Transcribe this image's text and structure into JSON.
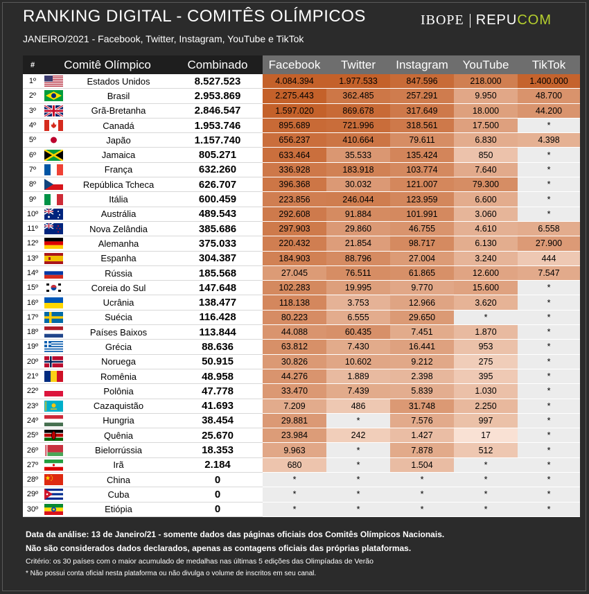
{
  "title": "RANKING DIGITAL - COMITÊS OLÍMPICOS",
  "subtitle": "JANEIRO/2021 - Facebook, Twitter, Instagram, YouTube e TikTok",
  "logos": {
    "ibope": "IBOPE",
    "repucom_a": "REPU",
    "repucom_b": "COM"
  },
  "headers": {
    "rank": "#",
    "committee": "Comitê Olímpico",
    "combined": "Combinado",
    "facebook": "Facebook",
    "twitter": "Twitter",
    "instagram": "Instagram",
    "youtube": "YouTube",
    "tiktok": "TikTok"
  },
  "colors": {
    "background": "#2b2b2b",
    "header_gray": "#6e6e6e",
    "na_cell": "#ececec",
    "top_value": "#c4612a",
    "repucom_accent": "#b5cf2e"
  },
  "rows": [
    {
      "rank": "1º",
      "flag": "us-flag",
      "name": "Estados Unidos",
      "combined": "8.527.523",
      "facebook": "4.084.394",
      "twitter": "1.977.533",
      "instagram": "847.596",
      "youtube": "218.000",
      "tiktok": "1.400.000"
    },
    {
      "rank": "2º",
      "flag": "br-flag",
      "name": "Brasil",
      "combined": "2.953.869",
      "facebook": "2.275.443",
      "twitter": "362.485",
      "instagram": "257.291",
      "youtube": "9.950",
      "tiktok": "48.700"
    },
    {
      "rank": "3º",
      "flag": "gb-flag",
      "name": "Grã-Bretanha",
      "combined": "2.846.547",
      "facebook": "1.597.020",
      "twitter": "869.678",
      "instagram": "317.649",
      "youtube": "18.000",
      "tiktok": "44.200"
    },
    {
      "rank": "4º",
      "flag": "ca-flag",
      "name": "Canadá",
      "combined": "1.953.746",
      "facebook": "895.689",
      "twitter": "721.996",
      "instagram": "318.561",
      "youtube": "17.500",
      "tiktok": "*"
    },
    {
      "rank": "5º",
      "flag": "jp-flag",
      "name": "Japão",
      "combined": "1.157.740",
      "facebook": "656.237",
      "twitter": "410.664",
      "instagram": "79.611",
      "youtube": "6.830",
      "tiktok": "4.398"
    },
    {
      "rank": "6º",
      "flag": "jm-flag",
      "name": "Jamaica",
      "combined": "805.271",
      "facebook": "633.464",
      "twitter": "35.533",
      "instagram": "135.424",
      "youtube": "850",
      "tiktok": "*"
    },
    {
      "rank": "7º",
      "flag": "fr-flag",
      "name": "França",
      "combined": "632.260",
      "facebook": "336.928",
      "twitter": "183.918",
      "instagram": "103.774",
      "youtube": "7.640",
      "tiktok": "*"
    },
    {
      "rank": "8º",
      "flag": "cz-flag",
      "name": "República Tcheca",
      "combined": "626.707",
      "facebook": "396.368",
      "twitter": "30.032",
      "instagram": "121.007",
      "youtube": "79.300",
      "tiktok": "*"
    },
    {
      "rank": "9º",
      "flag": "it-flag",
      "name": "Itália",
      "combined": "600.459",
      "facebook": "223.856",
      "twitter": "246.044",
      "instagram": "123.959",
      "youtube": "6.600",
      "tiktok": "*"
    },
    {
      "rank": "10º",
      "flag": "au-flag",
      "name": "Austrália",
      "combined": "489.543",
      "facebook": "292.608",
      "twitter": "91.884",
      "instagram": "101.991",
      "youtube": "3.060",
      "tiktok": "*"
    },
    {
      "rank": "11º",
      "flag": "nz-flag",
      "name": "Nova Zelândia",
      "combined": "385.686",
      "facebook": "297.903",
      "twitter": "29.860",
      "instagram": "46.755",
      "youtube": "4.610",
      "tiktok": "6.558"
    },
    {
      "rank": "12º",
      "flag": "de-flag",
      "name": "Alemanha",
      "combined": "375.033",
      "facebook": "220.432",
      "twitter": "21.854",
      "instagram": "98.717",
      "youtube": "6.130",
      "tiktok": "27.900"
    },
    {
      "rank": "13º",
      "flag": "es-flag",
      "name": "Espanha",
      "combined": "304.387",
      "facebook": "184.903",
      "twitter": "88.796",
      "instagram": "27.004",
      "youtube": "3.240",
      "tiktok": "444"
    },
    {
      "rank": "14º",
      "flag": "ru-flag",
      "name": "Rússia",
      "combined": "185.568",
      "facebook": "27.045",
      "twitter": "76.511",
      "instagram": "61.865",
      "youtube": "12.600",
      "tiktok": "7.547"
    },
    {
      "rank": "15º",
      "flag": "kr-flag",
      "name": "Coreia do Sul",
      "combined": "147.648",
      "facebook": "102.283",
      "twitter": "19.995",
      "instagram": "9.770",
      "youtube": "15.600",
      "tiktok": "*"
    },
    {
      "rank": "16º",
      "flag": "ua-flag",
      "name": "Ucrânia",
      "combined": "138.477",
      "facebook": "118.138",
      "twitter": "3.753",
      "instagram": "12.966",
      "youtube": "3.620",
      "tiktok": "*"
    },
    {
      "rank": "17º",
      "flag": "se-flag",
      "name": "Suécia",
      "combined": "116.428",
      "facebook": "80.223",
      "twitter": "6.555",
      "instagram": "29.650",
      "youtube": "*",
      "tiktok": "*"
    },
    {
      "rank": "18º",
      "flag": "nl-flag",
      "name": "Países Baixos",
      "combined": "113.844",
      "facebook": "44.088",
      "twitter": "60.435",
      "instagram": "7.451",
      "youtube": "1.870",
      "tiktok": "*"
    },
    {
      "rank": "19º",
      "flag": "gr-flag",
      "name": "Grécia",
      "combined": "88.636",
      "facebook": "63.812",
      "twitter": "7.430",
      "instagram": "16.441",
      "youtube": "953",
      "tiktok": "*"
    },
    {
      "rank": "20º",
      "flag": "no-flag",
      "name": "Noruega",
      "combined": "50.915",
      "facebook": "30.826",
      "twitter": "10.602",
      "instagram": "9.212",
      "youtube": "275",
      "tiktok": "*"
    },
    {
      "rank": "21º",
      "flag": "ro-flag",
      "name": "Romênia",
      "combined": "48.958",
      "facebook": "44.276",
      "twitter": "1.889",
      "instagram": "2.398",
      "youtube": "395",
      "tiktok": "*"
    },
    {
      "rank": "22º",
      "flag": "pl-flag",
      "name": "Polônia",
      "combined": "47.778",
      "facebook": "33.470",
      "twitter": "7.439",
      "instagram": "5.839",
      "youtube": "1.030",
      "tiktok": "*"
    },
    {
      "rank": "23º",
      "flag": "kz-flag",
      "name": "Cazaquistão",
      "combined": "41.693",
      "facebook": "7.209",
      "twitter": "486",
      "instagram": "31.748",
      "youtube": "2.250",
      "tiktok": "*"
    },
    {
      "rank": "24º",
      "flag": "hu-flag",
      "name": "Hungria",
      "combined": "38.454",
      "facebook": "29.881",
      "twitter": "*",
      "instagram": "7.576",
      "youtube": "997",
      "tiktok": "*"
    },
    {
      "rank": "25º",
      "flag": "ke-flag",
      "name": "Quênia",
      "combined": "25.670",
      "facebook": "23.984",
      "twitter": "242",
      "instagram": "1.427",
      "youtube": "17",
      "tiktok": "*"
    },
    {
      "rank": "26º",
      "flag": "by-flag",
      "name": "Bielorrússia",
      "combined": "18.353",
      "facebook": "9.963",
      "twitter": "*",
      "instagram": "7.878",
      "youtube": "512",
      "tiktok": "*"
    },
    {
      "rank": "27º",
      "flag": "ir-flag",
      "name": "Irã",
      "combined": "2.184",
      "facebook": "680",
      "twitter": "*",
      "instagram": "1.504",
      "youtube": "*",
      "tiktok": "*"
    },
    {
      "rank": "28º",
      "flag": "cn-flag",
      "name": "China",
      "combined": "0",
      "facebook": "*",
      "twitter": "*",
      "instagram": "*",
      "youtube": "*",
      "tiktok": "*"
    },
    {
      "rank": "29º",
      "flag": "cu-flag",
      "name": "Cuba",
      "combined": "0",
      "facebook": "*",
      "twitter": "*",
      "instagram": "*",
      "youtube": "*",
      "tiktok": "*"
    },
    {
      "rank": "30º",
      "flag": "et-flag",
      "name": "Etiópia",
      "combined": "0",
      "facebook": "*",
      "twitter": "*",
      "instagram": "*",
      "youtube": "*",
      "tiktok": "*"
    }
  ],
  "notes": {
    "analysis_date": "Data da análise: 13 de Janeiro/21 - somente dados das páginas oficiais dos Comitês Olímpicos Nacionais.",
    "declared": "Não são considerados dados declarados, apenas as contagens oficiais das próprias plataformas.",
    "criteria": "Critério: os 30 países com o maior acumulado de medalhas nas últimas 5 edições das Olimpíadas de Verão",
    "footnote": "* Não possui conta oficial nesta plataforma ou não divulga o volume de inscritos em seu canal."
  }
}
